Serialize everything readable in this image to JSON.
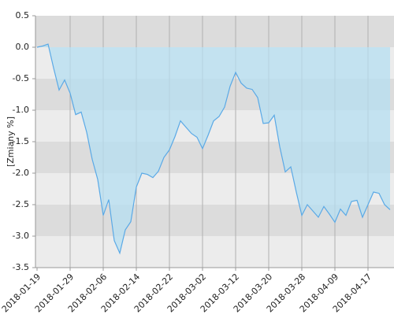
{
  "chart_data": {
    "type": "area",
    "y_label": "[Zmiany %]",
    "categories": [
      "2018-01-19",
      null,
      null,
      null,
      null,
      null,
      "2018-01-29",
      null,
      null,
      null,
      null,
      null,
      "2018-02-06",
      null,
      null,
      null,
      null,
      null,
      "2018-02-14",
      null,
      null,
      null,
      null,
      null,
      "2018-02-22",
      null,
      null,
      null,
      null,
      null,
      "2018-03-02",
      null,
      null,
      null,
      null,
      null,
      "2018-03-12",
      null,
      null,
      null,
      null,
      null,
      "2018-03-20",
      null,
      null,
      null,
      null,
      null,
      "2018-03-28",
      null,
      null,
      null,
      null,
      null,
      "2018-04-09",
      null,
      null,
      null,
      null,
      null,
      "2018-04-17",
      null,
      null,
      null,
      null
    ],
    "series": [
      {
        "color": "#5aa9e6",
        "values": [
          0.0,
          0.02,
          0.05,
          -0.33,
          -0.68,
          -0.52,
          -0.73,
          -1.07,
          -1.03,
          -1.35,
          -1.78,
          -2.1,
          -2.67,
          -2.42,
          -3.07,
          -3.27,
          -2.9,
          -2.77,
          -2.22,
          -2.0,
          -2.02,
          -2.07,
          -1.97,
          -1.75,
          -1.63,
          -1.42,
          -1.17,
          -1.27,
          -1.37,
          -1.43,
          -1.61,
          -1.4,
          -1.17,
          -1.1,
          -0.95,
          -0.62,
          -0.4,
          -0.57,
          -0.65,
          -0.67,
          -0.8,
          -1.21,
          -1.2,
          -1.08,
          -1.58,
          -1.98,
          -1.9,
          -2.3,
          -2.67,
          -2.5,
          -2.6,
          -2.7,
          -2.53,
          -2.65,
          -2.78,
          -2.57,
          -2.67,
          -2.45,
          -2.43,
          -2.7,
          -2.5,
          -2.3,
          -2.32,
          -2.5,
          -2.58
        ]
      }
    ],
    "ylim": [
      -3.5,
      0.5
    ],
    "yticks": [
      0.5,
      {
        "value": 0,
        "label": "0.0"
      },
      -0.5,
      {
        "value": -1,
        "label": "-1.0"
      },
      -1.5,
      {
        "value": -2,
        "label": "-2.0"
      },
      -2.5,
      {
        "value": -3,
        "label": "-3.0"
      },
      -3.5
    ],
    "band_colors": [
      "#dcdcdc",
      "#ececec"
    ],
    "fill_color": "#b5dff2"
  }
}
